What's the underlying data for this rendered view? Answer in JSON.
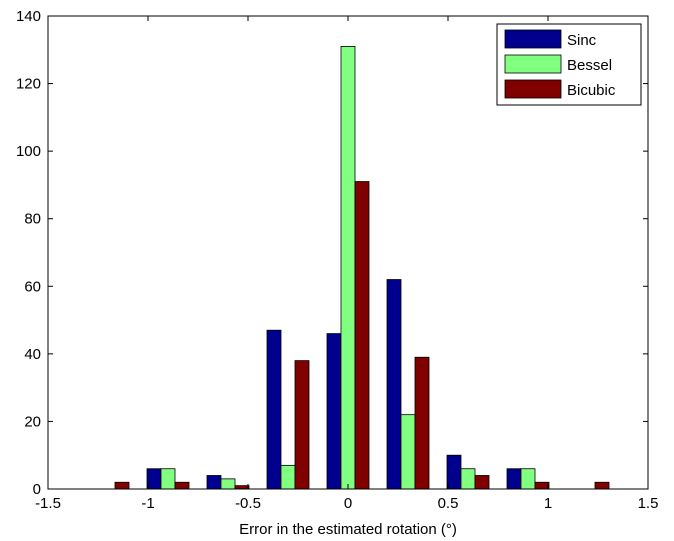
{
  "chart_data": {
    "type": "bar",
    "title": "",
    "xlabel": "Error in the estimated rotation (°)",
    "ylabel": "",
    "xlim": [
      -1.5,
      1.5
    ],
    "ylim": [
      0,
      140
    ],
    "xticks": [
      -1.5,
      -1,
      -0.5,
      0,
      0.5,
      1,
      1.5
    ],
    "xtick_labels": [
      "-1.5",
      "-1",
      "-0.5",
      "0",
      "0.5",
      "1",
      "1.5"
    ],
    "yticks": [
      0,
      20,
      40,
      60,
      80,
      100,
      120,
      140
    ],
    "ytick_labels": [
      "0",
      "20",
      "40",
      "60",
      "80",
      "100",
      "120",
      "140"
    ],
    "bin_centers": [
      -1.2,
      -0.9,
      -0.6,
      -0.3,
      0,
      0.3,
      0.6,
      0.9,
      1.2
    ],
    "grid": false,
    "legend_position": "top-right",
    "series": [
      {
        "name": "Sinc",
        "color": "#00008f",
        "values": [
          0,
          6,
          4,
          47,
          46,
          62,
          10,
          6,
          0
        ]
      },
      {
        "name": "Bessel",
        "color": "#80ff80",
        "values": [
          0,
          6,
          3,
          7,
          131,
          22,
          6,
          6,
          0
        ]
      },
      {
        "name": "Bicubic",
        "color": "#800000",
        "values": [
          2,
          2,
          1,
          38,
          91,
          39,
          4,
          2,
          2
        ]
      }
    ]
  }
}
